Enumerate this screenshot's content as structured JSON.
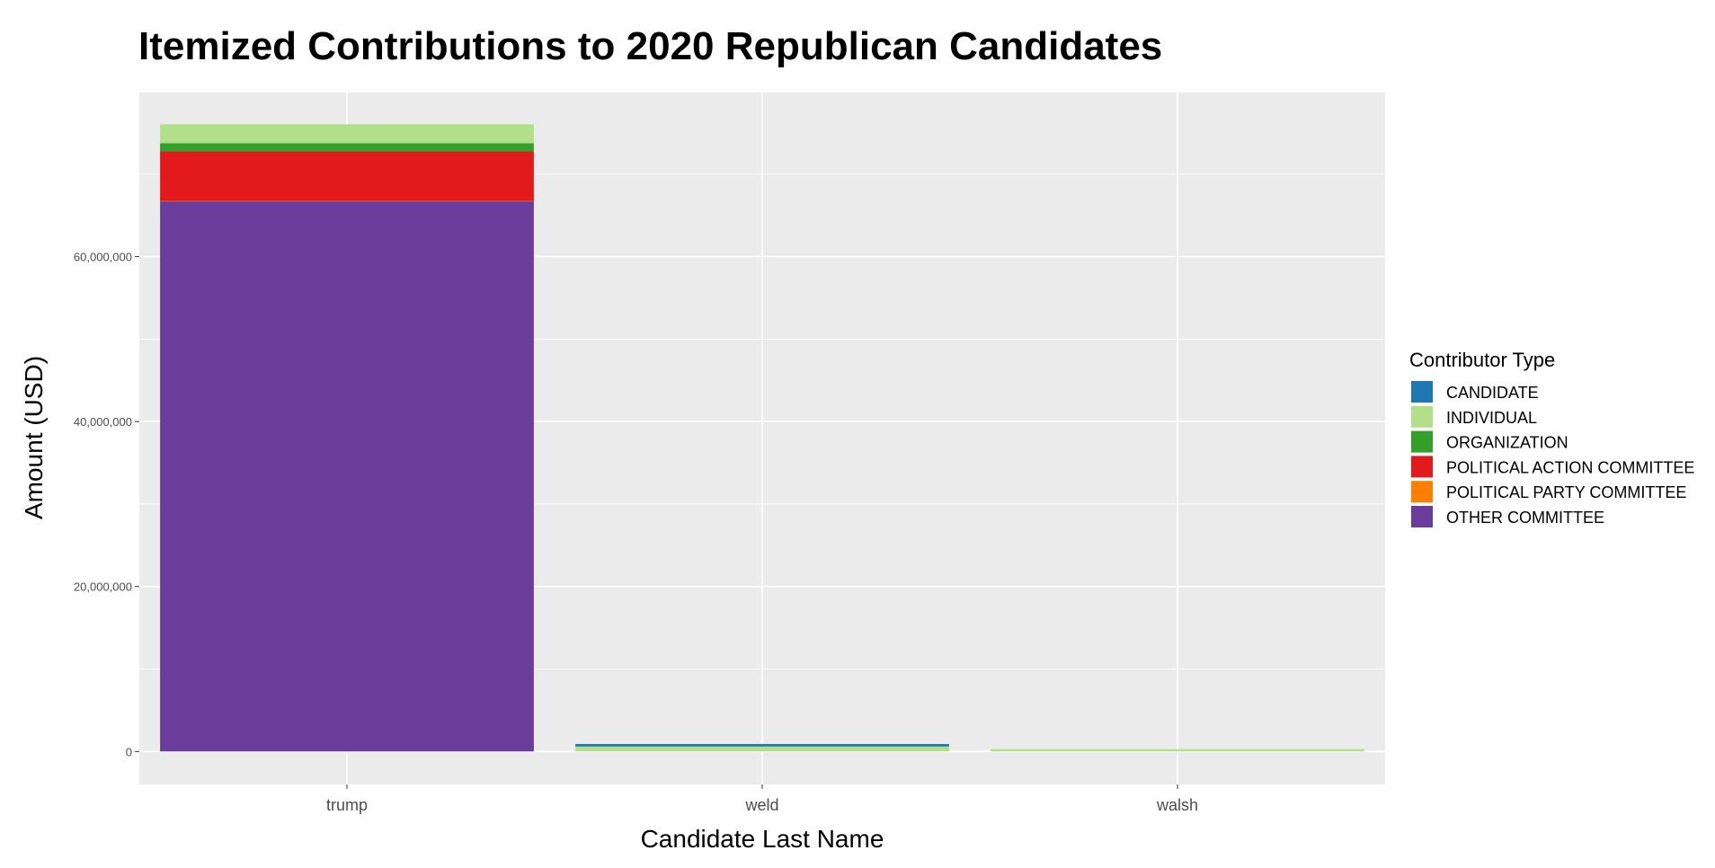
{
  "chart_data": {
    "type": "bar",
    "stacked": true,
    "title": "Itemized Contributions to 2020 Republican Candidates",
    "xlabel": "Candidate Last Name",
    "ylabel": "Amount (USD)",
    "ylim": [
      -4000000,
      80000000
    ],
    "y_ticks": [
      0,
      20000000,
      40000000,
      60000000
    ],
    "y_tick_labels": [
      "0",
      "20,000,000",
      "40,000,000",
      "60,000,000"
    ],
    "grid": true,
    "categories": [
      "trump",
      "weld",
      "walsh"
    ],
    "legend": {
      "title": "Contributor Type",
      "position": "right"
    },
    "series": [
      {
        "name": "CANDIDATE",
        "color": "#1f78b4",
        "values": [
          0,
          300000,
          0
        ]
      },
      {
        "name": "INDIVIDUAL",
        "color": "#b2df8a",
        "values": [
          2300000,
          600000,
          150000
        ]
      },
      {
        "name": "ORGANIZATION",
        "color": "#33a02c",
        "values": [
          1000000,
          0,
          0
        ]
      },
      {
        "name": "POLITICAL ACTION COMMITTEE",
        "color": "#e31a1c",
        "values": [
          6000000,
          0,
          0
        ]
      },
      {
        "name": "POLITICAL PARTY COMMITTEE",
        "color": "#ff7f00",
        "values": [
          50000,
          0,
          0
        ]
      },
      {
        "name": "OTHER COMMITTEE",
        "color": "#6a3d9a",
        "values": [
          66700000,
          0,
          0
        ]
      }
    ]
  }
}
